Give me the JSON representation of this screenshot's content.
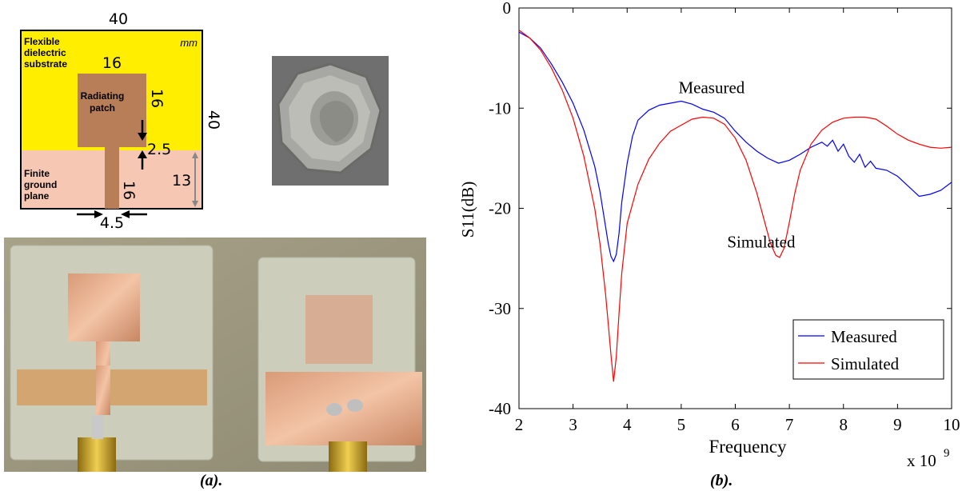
{
  "diagram": {
    "width_label": "40",
    "unit_label": "mm",
    "patch_width_label": "16",
    "patch_height_label": "16",
    "gap_label": "2.5",
    "height_label": "40",
    "ground_height_label": "13",
    "feed_length_label": "16",
    "feed_width_label": "4.5",
    "substrate_label": [
      "Flexible",
      "dielectric",
      "substrate"
    ],
    "patch_label": [
      "Radiating",
      "patch"
    ],
    "ground_label": [
      "Finite",
      "ground",
      "plane"
    ],
    "colors": {
      "substrate": "#ffee00",
      "patch": "#b87e58",
      "ground": "#f6c7b3"
    }
  },
  "captions": {
    "a": "(a).",
    "b": "(b)."
  },
  "chart_data": {
    "type": "line",
    "xlabel": "Frequency",
    "ylabel": "S11(dB)",
    "x_multiplier_label": "x 10",
    "x_multiplier_exp": "9",
    "xlim": [
      2,
      10
    ],
    "ylim": [
      -40,
      0
    ],
    "xticks": [
      2,
      3,
      4,
      5,
      6,
      7,
      8,
      9,
      10
    ],
    "yticks": [
      0,
      -10,
      -20,
      -30,
      -40
    ],
    "legend_position": "bottom-right",
    "annotations": [
      {
        "text": "Measured",
        "x": 4.95,
        "y": -8.5
      },
      {
        "text": "Simulated",
        "x": 5.85,
        "y": -23.9
      }
    ],
    "series": [
      {
        "name": "Measured",
        "color": "#0000ff",
        "x": [
          2.0,
          2.2,
          2.4,
          2.6,
          2.8,
          3.0,
          3.2,
          3.4,
          3.5,
          3.6,
          3.65,
          3.7,
          3.75,
          3.8,
          3.85,
          3.9,
          4.0,
          4.1,
          4.2,
          4.4,
          4.6,
          4.8,
          5.0,
          5.2,
          5.4,
          5.6,
          5.8,
          6.0,
          6.2,
          6.4,
          6.6,
          6.8,
          7.0,
          7.2,
          7.4,
          7.6,
          7.7,
          7.8,
          7.9,
          8.0,
          8.1,
          8.2,
          8.3,
          8.4,
          8.5,
          8.6,
          8.8,
          9.0,
          9.2,
          9.4,
          9.6,
          9.8,
          10.0
        ],
        "y": [
          -2.4,
          -3.0,
          -4.0,
          -5.6,
          -7.4,
          -9.5,
          -12.2,
          -15.8,
          -18.4,
          -21.8,
          -23.5,
          -24.8,
          -25.3,
          -24.6,
          -22.5,
          -19.4,
          -15.5,
          -12.8,
          -11.2,
          -10.2,
          -9.7,
          -9.5,
          -9.3,
          -9.6,
          -10.1,
          -10.4,
          -11.0,
          -12.3,
          -13.4,
          -14.3,
          -15.0,
          -15.5,
          -15.2,
          -14.6,
          -13.9,
          -13.4,
          -13.8,
          -13.2,
          -14.3,
          -13.6,
          -14.8,
          -15.4,
          -14.6,
          -15.9,
          -15.3,
          -16.0,
          -16.2,
          -16.8,
          -17.8,
          -18.8,
          -18.6,
          -18.2,
          -17.4
        ]
      },
      {
        "name": "Simulated",
        "color": "#ff0000",
        "x": [
          2.0,
          2.2,
          2.4,
          2.6,
          2.8,
          3.0,
          3.2,
          3.4,
          3.5,
          3.6,
          3.65,
          3.7,
          3.75,
          3.8,
          3.85,
          3.9,
          4.0,
          4.2,
          4.4,
          4.6,
          4.8,
          5.0,
          5.2,
          5.4,
          5.6,
          5.8,
          6.0,
          6.2,
          6.4,
          6.55,
          6.65,
          6.75,
          6.82,
          6.9,
          7.0,
          7.1,
          7.2,
          7.4,
          7.6,
          7.8,
          8.0,
          8.2,
          8.4,
          8.6,
          8.8,
          9.0,
          9.2,
          9.4,
          9.6,
          9.8,
          10.0
        ],
        "y": [
          -2.2,
          -3.0,
          -4.2,
          -6.0,
          -8.2,
          -11.0,
          -14.8,
          -20.0,
          -23.6,
          -28.5,
          -31.5,
          -34.6,
          -37.3,
          -34.8,
          -30.5,
          -26.5,
          -21.5,
          -17.6,
          -15.1,
          -13.5,
          -12.3,
          -11.7,
          -11.1,
          -10.9,
          -11.0,
          -11.6,
          -13.0,
          -15.2,
          -18.5,
          -21.5,
          -23.5,
          -24.7,
          -24.9,
          -24.0,
          -21.4,
          -18.5,
          -16.2,
          -13.6,
          -12.2,
          -11.4,
          -11.0,
          -10.9,
          -10.9,
          -11.1,
          -11.8,
          -12.6,
          -13.2,
          -13.6,
          -13.9,
          -14.0,
          -13.9
        ]
      }
    ]
  }
}
